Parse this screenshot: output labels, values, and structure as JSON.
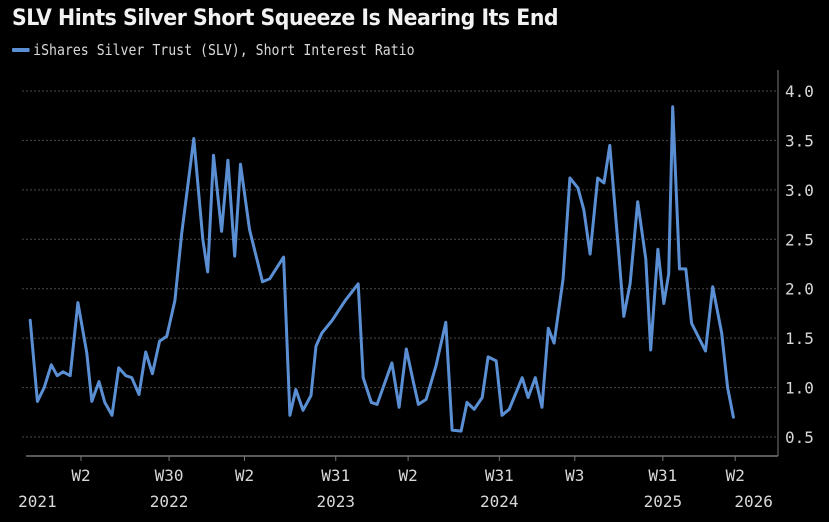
{
  "chart_data": {
    "type": "line",
    "title": "SLV Hints Silver Short Squeeze Is Nearing Its End",
    "legend_position": "top-left",
    "grid": true,
    "background": "#000000",
    "series": [
      {
        "name": "iShares Silver Trust (SLV), Short Interest Ratio",
        "color": "#5b8fd4",
        "points": [
          [
            "2021-09-19",
            1.68
          ],
          [
            "2021-10-05",
            0.86
          ],
          [
            "2021-10-20",
            1.0
          ],
          [
            "2021-11-05",
            1.23
          ],
          [
            "2021-11-18",
            1.12
          ],
          [
            "2021-12-01",
            1.16
          ],
          [
            "2021-12-17",
            1.12
          ],
          [
            "2022-01-03",
            1.86
          ],
          [
            "2022-01-23",
            1.35
          ],
          [
            "2022-02-03",
            0.86
          ],
          [
            "2022-02-19",
            1.06
          ],
          [
            "2022-03-04",
            0.85
          ],
          [
            "2022-03-20",
            0.72
          ],
          [
            "2022-04-04",
            1.2
          ],
          [
            "2022-04-20",
            1.12
          ],
          [
            "2022-05-03",
            1.1
          ],
          [
            "2022-05-19",
            0.93
          ],
          [
            "2022-06-03",
            1.36
          ],
          [
            "2022-06-18",
            1.14
          ],
          [
            "2022-07-04",
            1.47
          ],
          [
            "2022-07-20",
            1.52
          ],
          [
            "2022-08-07",
            1.88
          ],
          [
            "2022-08-22",
            2.55
          ],
          [
            "2022-09-18",
            3.52
          ],
          [
            "2022-10-08",
            2.5
          ],
          [
            "2022-10-19",
            2.17
          ],
          [
            "2022-11-01",
            3.35
          ],
          [
            "2022-11-19",
            2.58
          ],
          [
            "2022-12-03",
            3.3
          ],
          [
            "2022-12-18",
            2.33
          ],
          [
            "2022-12-31",
            3.26
          ],
          [
            "2023-01-20",
            2.6
          ],
          [
            "2023-02-18",
            2.07
          ],
          [
            "2023-03-06",
            2.1
          ],
          [
            "2023-04-06",
            2.32
          ],
          [
            "2023-04-20",
            0.72
          ],
          [
            "2023-05-03",
            0.98
          ],
          [
            "2023-05-19",
            0.77
          ],
          [
            "2023-06-06",
            0.92
          ],
          [
            "2023-06-17",
            1.42
          ],
          [
            "2023-06-30",
            1.55
          ],
          [
            "2023-07-23",
            1.68
          ],
          [
            "2023-08-21",
            1.88
          ],
          [
            "2023-09-19",
            2.05
          ],
          [
            "2023-09-30",
            1.1
          ],
          [
            "2023-10-18",
            0.85
          ],
          [
            "2023-10-31",
            0.83
          ],
          [
            "2023-12-03",
            1.25
          ],
          [
            "2023-12-19",
            0.8
          ],
          [
            "2024-01-04",
            1.39
          ],
          [
            "2024-01-20",
            1.05
          ],
          [
            "2024-01-31",
            0.83
          ],
          [
            "2024-02-17",
            0.88
          ],
          [
            "2024-03-10",
            1.22
          ],
          [
            "2024-04-01",
            1.66
          ],
          [
            "2024-04-15",
            0.57
          ],
          [
            "2024-05-05",
            0.56
          ],
          [
            "2024-05-18",
            0.85
          ],
          [
            "2024-06-03",
            0.78
          ],
          [
            "2024-06-21",
            0.9
          ],
          [
            "2024-07-04",
            1.31
          ],
          [
            "2024-07-22",
            1.27
          ],
          [
            "2024-08-04",
            0.72
          ],
          [
            "2024-08-20",
            0.78
          ],
          [
            "2024-09-18",
            1.1
          ],
          [
            "2024-10-01",
            0.9
          ],
          [
            "2024-10-17",
            1.1
          ],
          [
            "2024-11-01",
            0.8
          ],
          [
            "2024-11-15",
            1.6
          ],
          [
            "2024-11-28",
            1.45
          ],
          [
            "2024-12-18",
            2.1
          ],
          [
            "2025-01-02",
            3.12
          ],
          [
            "2025-01-20",
            3.02
          ],
          [
            "2025-02-02",
            2.8
          ],
          [
            "2025-02-16",
            2.35
          ],
          [
            "2025-03-05",
            3.12
          ],
          [
            "2025-03-19",
            3.07
          ],
          [
            "2025-04-01",
            3.45
          ],
          [
            "2025-04-21",
            2.35
          ],
          [
            "2025-05-02",
            1.72
          ],
          [
            "2025-05-16",
            2.05
          ],
          [
            "2025-06-02",
            2.88
          ],
          [
            "2025-06-20",
            2.3
          ],
          [
            "2025-07-01",
            1.38
          ],
          [
            "2025-07-17",
            2.4
          ],
          [
            "2025-07-30",
            1.85
          ],
          [
            "2025-08-10",
            2.15
          ],
          [
            "2025-08-19",
            3.84
          ],
          [
            "2025-09-03",
            2.2
          ],
          [
            "2025-09-17",
            2.2
          ],
          [
            "2025-09-30",
            1.65
          ],
          [
            "2025-10-31",
            1.37
          ],
          [
            "2025-11-16",
            2.02
          ],
          [
            "2025-12-06",
            1.55
          ],
          [
            "2025-12-19",
            1.0
          ],
          [
            "2026-01-01",
            0.7
          ]
        ]
      }
    ],
    "yaxis": {
      "position": "right",
      "ylim": [
        0.5,
        4.0
      ],
      "ticks": [
        "0.5",
        "1.0",
        "1.5",
        "2.0",
        "2.5",
        "3.0",
        "3.5",
        "4.0"
      ]
    },
    "xaxis": {
      "xlim": [
        "2021-09-10",
        "2026-03-15"
      ],
      "ticks": [
        {
          "date": "2022-01-10",
          "label": "W2"
        },
        {
          "date": "2022-07-25",
          "label": "W30"
        },
        {
          "date": "2023-01-09",
          "label": "W2"
        },
        {
          "date": "2023-07-31",
          "label": "W31"
        },
        {
          "date": "2024-01-08",
          "label": "W2"
        },
        {
          "date": "2024-07-29",
          "label": "W31"
        },
        {
          "date": "2025-01-13",
          "label": "W3"
        },
        {
          "date": "2025-07-28",
          "label": "W31"
        },
        {
          "date": "2026-01-05",
          "label": "W2"
        }
      ],
      "year_labels": [
        {
          "date": "2021-10-05",
          "label": "2021"
        },
        {
          "date": "2022-07-25",
          "label": "2022"
        },
        {
          "date": "2023-07-31",
          "label": "2023"
        },
        {
          "date": "2024-07-29",
          "label": "2024"
        },
        {
          "date": "2025-07-28",
          "label": "2025"
        },
        {
          "date": "2026-02-15",
          "label": "2026"
        }
      ]
    }
  }
}
